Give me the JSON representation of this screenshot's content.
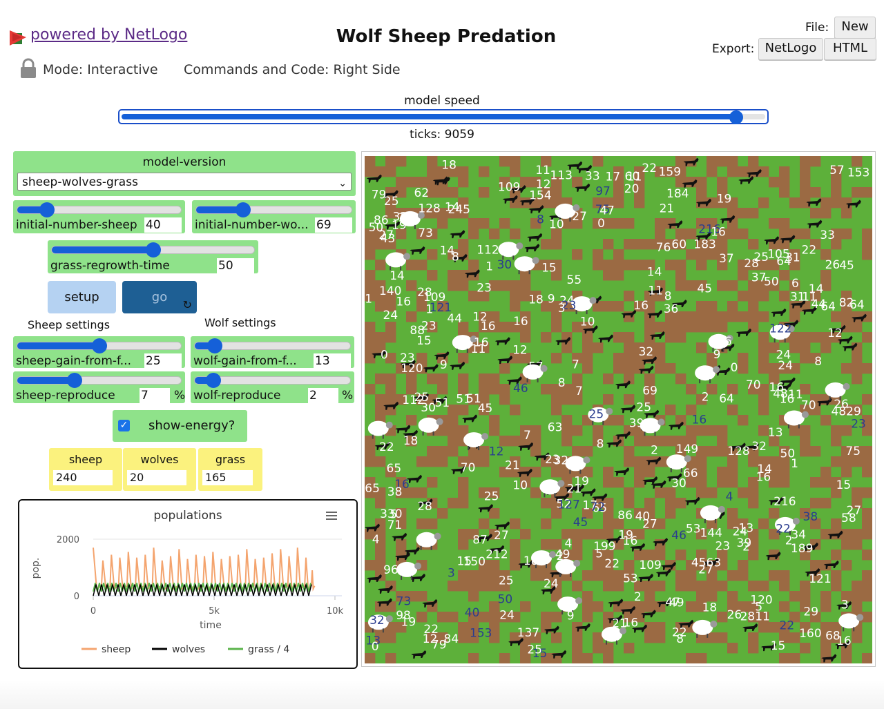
{
  "header": {
    "powered_by": "powered by NetLogo",
    "title": "Wolf Sheep Predation",
    "file_label": "File:",
    "new_button": "New",
    "export_label": "Export:",
    "export_netlogo": "NetLogo",
    "export_html": "HTML",
    "mode": "Mode: Interactive",
    "commands": "Commands and Code: Right Side"
  },
  "speed": {
    "label": "model speed",
    "value": 0.955,
    "ticks": "ticks: 9059"
  },
  "chooser": {
    "label": "model-version",
    "selected": "sheep-wolves-grass"
  },
  "sliders": {
    "initial_sheep": {
      "name": "initial-number-sheep",
      "value": "40",
      "fraction": 0.18
    },
    "initial_wolves": {
      "name": "initial-number-wo...",
      "value": "69",
      "fraction": 0.3
    },
    "grass_regrowth": {
      "name": "grass-regrowth-time",
      "value": "50",
      "fraction": 0.5
    },
    "sheep_gain": {
      "name": "sheep-gain-from-f...",
      "value": "25",
      "fraction": 0.5
    },
    "wolf_gain": {
      "name": "wolf-gain-from-f...",
      "value": "13",
      "fraction": 0.13
    },
    "sheep_reproduce": {
      "name": "sheep-reproduce",
      "value": "7",
      "unit": "%",
      "fraction": 0.35
    },
    "wolf_reproduce": {
      "name": "wolf-reproduce",
      "value": "2",
      "unit": "%",
      "fraction": 0.12
    }
  },
  "buttons": {
    "setup": "setup",
    "go": "go",
    "go_icon": "forever-icon"
  },
  "sections": {
    "sheep": "Sheep settings",
    "wolf": "Wolf settings"
  },
  "switch": {
    "label": "show-energy?",
    "checked": true
  },
  "monitors": {
    "sheep": {
      "label": "sheep",
      "value": "240"
    },
    "wolves": {
      "label": "wolves",
      "value": "20"
    },
    "grass": {
      "label": "grass",
      "value": "165"
    }
  },
  "chart_data": {
    "type": "line",
    "title": "populations",
    "xlabel": "time",
    "ylabel": "pop.",
    "xlim": [
      0,
      10000
    ],
    "ylim": [
      0,
      2000
    ],
    "xticks": [
      "0",
      "5k",
      "10k"
    ],
    "yticks": [
      "0",
      "2000"
    ],
    "grid": true,
    "legend_position": "bottom",
    "series": [
      {
        "name": "sheep",
        "color": "#f4a46e",
        "x": [
          0,
          400,
          750,
          1100,
          1450,
          1800,
          2150,
          2500,
          2850,
          3200,
          3550,
          3900,
          4250,
          4600,
          4950,
          5300,
          5650,
          6000,
          6350,
          6700,
          7050,
          7400,
          7750,
          8100,
          8450,
          8800,
          9059
        ],
        "peaks": [
          1700,
          1250,
          1450,
          1350,
          1550,
          1350,
          1450,
          1700,
          1250,
          1400,
          1650,
          1300,
          1450,
          1400,
          1550,
          1300,
          1400,
          1450,
          1650,
          1300,
          1350,
          1500,
          1650,
          1400,
          1700,
          1350,
          900
        ]
      },
      {
        "name": "wolves",
        "color": "#000000",
        "x": [
          0,
          9059
        ],
        "range": [
          0,
          400
        ]
      },
      {
        "name": "grass / 4",
        "color": "#5ab34a",
        "x": [
          0,
          9059
        ],
        "range": [
          150,
          450
        ]
      }
    ]
  },
  "world": {
    "grass_color": "#5db03a",
    "dirt_color": "#9b6a43",
    "labels": [
      "2",
      "16",
      "64",
      "84",
      "75",
      "16",
      "109",
      "160",
      "5",
      "16",
      "40",
      "19",
      "25",
      "40",
      "153",
      "14",
      "0",
      "87",
      "12",
      "33",
      "25",
      "183",
      "3",
      "73",
      "64",
      "0",
      "28",
      "8",
      "70",
      "1",
      "212",
      "30",
      "30",
      "245",
      "0",
      "52",
      "70",
      "27",
      "12",
      "36",
      "4",
      "60",
      "69",
      "14",
      "149",
      "19",
      "0",
      "48",
      "16",
      "46",
      "16",
      "2",
      "137",
      "109",
      "32",
      "79",
      "45",
      "17",
      "16",
      "53",
      "27",
      "60",
      "24",
      "96",
      "14",
      "189",
      "13",
      "122",
      "105",
      "11",
      "68",
      "8",
      "12",
      "9",
      "4",
      "1128",
      "45",
      "16",
      "4829",
      "26",
      "140",
      "12",
      "18",
      "184",
      "159",
      "22",
      "58",
      "144",
      "10",
      "8",
      "15",
      "86",
      "23",
      "9",
      "8",
      "70",
      "76",
      "13",
      "17",
      "28",
      "18",
      "18",
      "24",
      "153",
      "8",
      "21",
      "29",
      "2",
      "10",
      "16",
      "65",
      "121",
      "23",
      "64",
      "9",
      "28",
      "22",
      "24",
      "112",
      "4",
      "216",
      "216",
      "16",
      "128",
      "150",
      "18",
      "86",
      "2",
      "23",
      "7",
      "12",
      "82",
      "44",
      "7",
      "31",
      "23",
      "50",
      "19",
      "15",
      "15",
      "24",
      "51",
      "51",
      "6",
      "330",
      "47",
      "30",
      "14",
      "50",
      "65",
      "25",
      "44",
      "120",
      "16",
      "31",
      "16",
      "199",
      "73",
      "65",
      "154",
      "98",
      "2811",
      "62",
      "88",
      "66",
      "24",
      "46",
      "26",
      "15",
      "7",
      "47",
      "64",
      "49",
      "49",
      "21",
      "72",
      "11",
      "21",
      "39",
      "25",
      "11",
      "38",
      "22",
      "22",
      "32",
      "53",
      "23",
      "20",
      "11",
      "12",
      "24",
      "25",
      "33",
      "25",
      "32",
      "8",
      "57",
      "109",
      "2",
      "27",
      "21",
      "11",
      "16",
      "27",
      "66",
      "24",
      "113",
      "8",
      "22",
      "57",
      "45",
      "22",
      "39",
      "16",
      "18",
      "19",
      "45",
      "50",
      "1",
      "23",
      "127",
      "55",
      "16",
      "5",
      "33",
      "37",
      "50",
      "19",
      "71",
      "97",
      "32",
      "51",
      "25",
      "3",
      "1",
      "10",
      "11",
      "2",
      "13",
      "43",
      "27",
      "22",
      "34",
      "18",
      "4563",
      "128",
      "14",
      "38",
      "15",
      "3",
      "14",
      "37",
      "120",
      "79",
      "26",
      "22",
      "121",
      "9",
      "1",
      "15",
      "63",
      "25",
      "11",
      "5",
      "27",
      "23",
      "75"
    ]
  }
}
